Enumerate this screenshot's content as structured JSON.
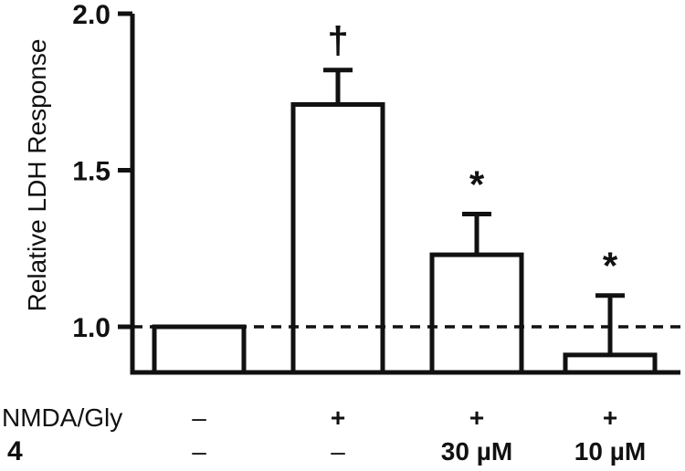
{
  "chart_data": {
    "type": "bar",
    "title": "",
    "xlabel": "",
    "ylabel": "Relative LDH Response",
    "ylim": [
      0.85,
      2.0
    ],
    "y_ticks": [
      "1.0",
      "1.5",
      "2.0"
    ],
    "reference_line": 1.0,
    "grid": false,
    "bars": [
      {
        "value": 1.0,
        "error": 0,
        "significance": ""
      },
      {
        "value": 1.71,
        "error": 0.11,
        "significance": "†"
      },
      {
        "value": 1.23,
        "error": 0.13,
        "significance": "*"
      },
      {
        "value": 0.91,
        "error": 0.19,
        "significance": "*"
      }
    ],
    "condition_rows": [
      {
        "label": "NMDA/Gly",
        "bold": false,
        "values": [
          "–",
          "+",
          "+",
          "+"
        ]
      },
      {
        "label": "4",
        "bold": true,
        "values": [
          "–",
          "–",
          "30 µM",
          "10 µM"
        ]
      }
    ]
  }
}
